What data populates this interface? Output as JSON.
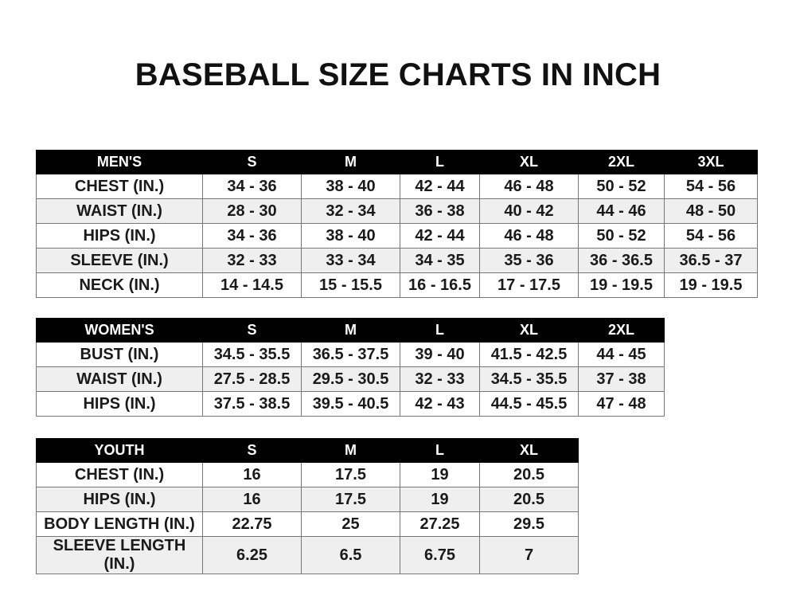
{
  "title": "BASEBALL SIZE CHARTS IN INCH",
  "tables": {
    "men": {
      "header": [
        "MEN'S",
        "S",
        "M",
        "L",
        "XL",
        "2XL",
        "3XL"
      ],
      "rows": [
        [
          "CHEST (IN.)",
          "34 - 36",
          "38 - 40",
          "42 - 44",
          "46 - 48",
          "50 - 52",
          "54 - 56"
        ],
        [
          "WAIST (IN.)",
          "28 - 30",
          "32 - 34",
          "36 - 38",
          "40 - 42",
          "44 - 46",
          "48 - 50"
        ],
        [
          "HIPS (IN.)",
          "34 - 36",
          "38 - 40",
          "42 - 44",
          "46 - 48",
          "50 - 52",
          "54 - 56"
        ],
        [
          "SLEEVE (IN.)",
          "32 - 33",
          "33 - 34",
          "34 - 35",
          "35 - 36",
          "36 - 36.5",
          "36.5 - 37"
        ],
        [
          "NECK (IN.)",
          "14 - 14.5",
          "15 - 15.5",
          "16 - 16.5",
          "17 - 17.5",
          "19 - 19.5",
          "19 - 19.5"
        ]
      ]
    },
    "women": {
      "header": [
        "WOMEN'S",
        "S",
        "M",
        "L",
        "XL",
        "2XL"
      ],
      "rows": [
        [
          "BUST (IN.)",
          "34.5 - 35.5",
          "36.5 - 37.5",
          "39 - 40",
          "41.5 - 42.5",
          "44 - 45"
        ],
        [
          "WAIST (IN.)",
          "27.5 - 28.5",
          "29.5 - 30.5",
          "32 - 33",
          "34.5 - 35.5",
          "37 - 38"
        ],
        [
          "HIPS (IN.)",
          "37.5 - 38.5",
          "39.5 - 40.5",
          "42 - 43",
          "44.5 - 45.5",
          "47 - 48"
        ]
      ]
    },
    "youth": {
      "header": [
        "YOUTH",
        "S",
        "M",
        "L",
        "XL"
      ],
      "rows": [
        [
          "CHEST (IN.)",
          "16",
          "17.5",
          "19",
          "20.5"
        ],
        [
          "HIPS (IN.)",
          "16",
          "17.5",
          "19",
          "20.5"
        ],
        [
          "BODY LENGTH (IN.)",
          "22.75",
          "25",
          "27.25",
          "29.5"
        ],
        [
          "SLEEVE LENGTH (IN.)",
          "6.25",
          "6.5",
          "6.75",
          "7"
        ]
      ]
    }
  }
}
